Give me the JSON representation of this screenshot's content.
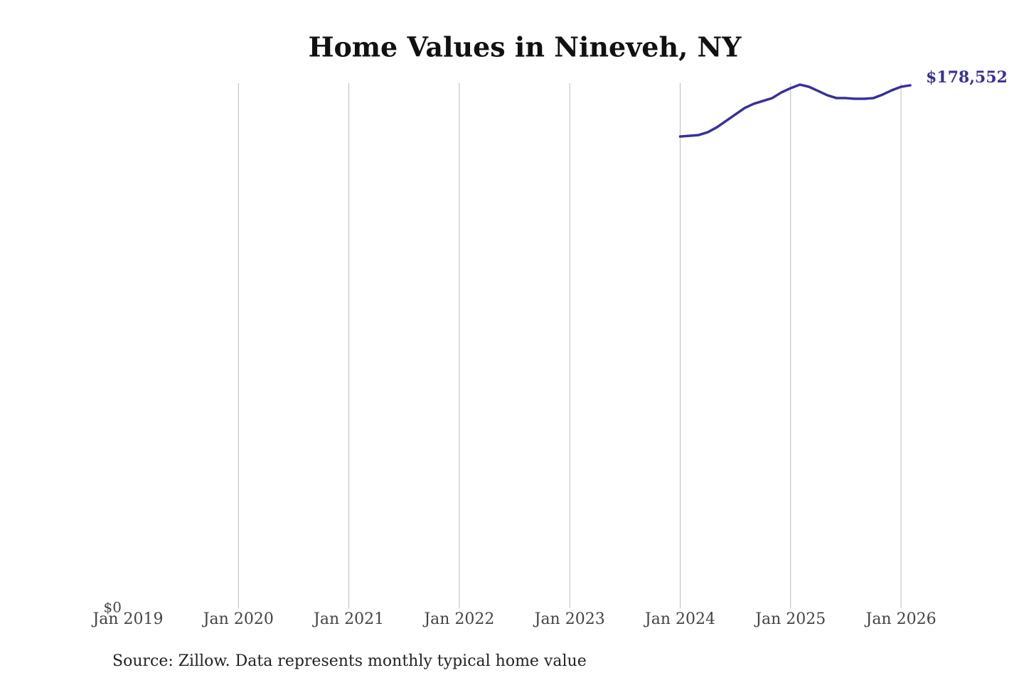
{
  "chart_data": {
    "type": "line",
    "title": "Home Values in Nineveh, NY",
    "source": "Source: Zillow. Data represents monthly typical home value",
    "x": [
      "2024-01",
      "2024-02",
      "2024-03",
      "2024-04",
      "2024-05",
      "2024-06",
      "2024-07",
      "2024-08",
      "2024-09",
      "2024-10",
      "2024-11",
      "2024-12",
      "2025-01",
      "2025-02",
      "2025-03",
      "2025-04",
      "2025-05",
      "2025-06",
      "2025-07",
      "2025-08",
      "2025-09",
      "2025-10",
      "2025-11",
      "2025-12",
      "2026-01",
      "2026-02"
    ],
    "series": [
      {
        "color": "#38309a",
        "values": [
          161086,
          161329,
          161570,
          162540,
          164240,
          166420,
          168600,
          170790,
          172250,
          173220,
          174190,
          176130,
          177580,
          178790,
          178060,
          176610,
          175160,
          174190,
          174190,
          173950,
          173950,
          174190,
          175400,
          176860,
          178060,
          178552
        ],
        "value_labels": [
          null,
          null,
          null,
          null,
          null,
          null,
          null,
          null,
          null,
          null,
          null,
          null,
          null,
          null,
          null,
          null,
          null,
          null,
          null,
          null,
          null,
          null,
          null,
          null,
          null,
          "$178,552"
        ]
      }
    ],
    "xlim": [
      "2019-01",
      "2026-02"
    ],
    "xticks": [
      {
        "value": "2019-01",
        "label": "Jan 2019"
      },
      {
        "value": "2020-01",
        "label": "Jan 2020"
      },
      {
        "value": "2021-01",
        "label": "Jan 2021"
      },
      {
        "value": "2022-01",
        "label": "Jan 2022"
      },
      {
        "value": "2023-01",
        "label": "Jan 2023"
      },
      {
        "value": "2024-01",
        "label": "Jan 2024"
      },
      {
        "value": "2025-01",
        "label": "Jan 2025"
      },
      {
        "value": "2026-01",
        "label": "Jan 2026"
      }
    ],
    "ylim": [
      0,
      179300
    ],
    "yticks": [
      {
        "value": 0,
        "label": "$0"
      }
    ],
    "grid": "x"
  }
}
